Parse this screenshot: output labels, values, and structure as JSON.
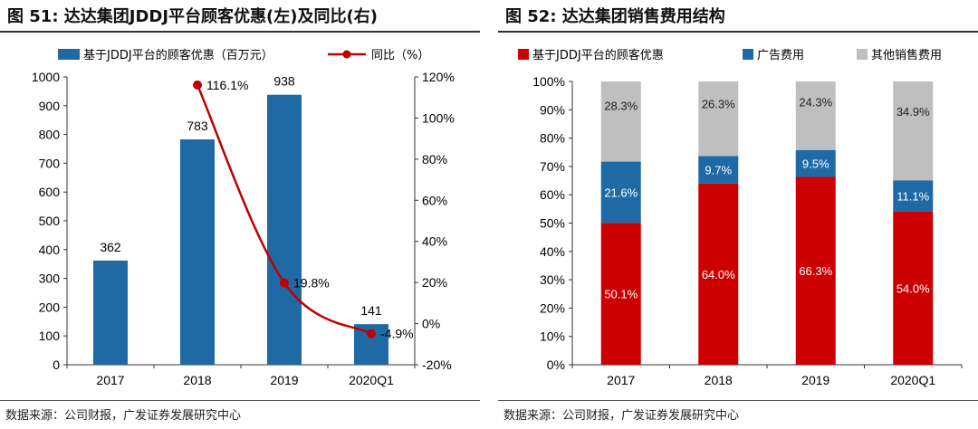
{
  "colors": {
    "bar_blue": "#1f6aa5",
    "line_red": "#c00000",
    "stack_red": "#cc0000",
    "stack_blue": "#1f6aa5",
    "stack_gray": "#bfbfbf"
  },
  "left": {
    "title": "图 51: 达达集团JDDJ平台顾客优惠(左)及同比(右)",
    "source": "数据来源：公司财报，广发证券发展研究中心"
  },
  "right": {
    "title": "图 52: 达达集团销售费用结构",
    "source": "数据来源：公司财报，广发证券发展研究中心"
  },
  "chart_data": [
    {
      "type": "bar",
      "title": "达达集团JDDJ平台顾客优惠(左)及同比(右)",
      "categories": [
        "2017",
        "2018",
        "2019",
        "2020Q1"
      ],
      "series": [
        {
          "name": "基于JDDJ平台的顾客优惠（百万元）",
          "type": "bar",
          "axis": "left",
          "values": [
            362,
            783,
            938,
            141
          ],
          "labels": [
            "362",
            "783",
            "938",
            "141"
          ]
        },
        {
          "name": "同比（%）",
          "type": "line",
          "axis": "right",
          "values": [
            null,
            116.1,
            19.8,
            -4.9
          ],
          "labels": [
            "",
            "116.1%",
            "19.8%",
            "-4.9%"
          ]
        }
      ],
      "ylim": [
        0,
        1000
      ],
      "yticks": [
        "0",
        "100",
        "200",
        "300",
        "400",
        "500",
        "600",
        "700",
        "800",
        "900",
        "1000"
      ],
      "y2lim": [
        -20,
        120
      ],
      "y2ticks": [
        "-20%",
        "0%",
        "20%",
        "40%",
        "60%",
        "80%",
        "100%",
        "120%"
      ],
      "legend": "top"
    },
    {
      "type": "bar",
      "stacked": true,
      "title": "达达集团销售费用结构",
      "categories": [
        "2017",
        "2018",
        "2019",
        "2020Q1"
      ],
      "series": [
        {
          "name": "基于JDDJ平台的顾客优惠",
          "values": [
            50.1,
            64.0,
            66.3,
            54.0
          ],
          "labels": [
            "50.1%",
            "64.0%",
            "66.3%",
            "54.0%"
          ]
        },
        {
          "name": "广告费用",
          "values": [
            21.6,
            9.7,
            9.5,
            11.1
          ],
          "labels": [
            "21.6%",
            "9.7%",
            "9.5%",
            "11.1%"
          ]
        },
        {
          "name": "其他销售费用",
          "values": [
            28.3,
            26.3,
            24.3,
            34.9
          ],
          "labels": [
            "28.3%",
            "26.3%",
            "24.3%",
            "34.9%"
          ]
        }
      ],
      "ylim": [
        0,
        100
      ],
      "yticks": [
        "0%",
        "10%",
        "20%",
        "30%",
        "40%",
        "50%",
        "60%",
        "70%",
        "80%",
        "90%",
        "100%"
      ],
      "legend": "top"
    }
  ]
}
